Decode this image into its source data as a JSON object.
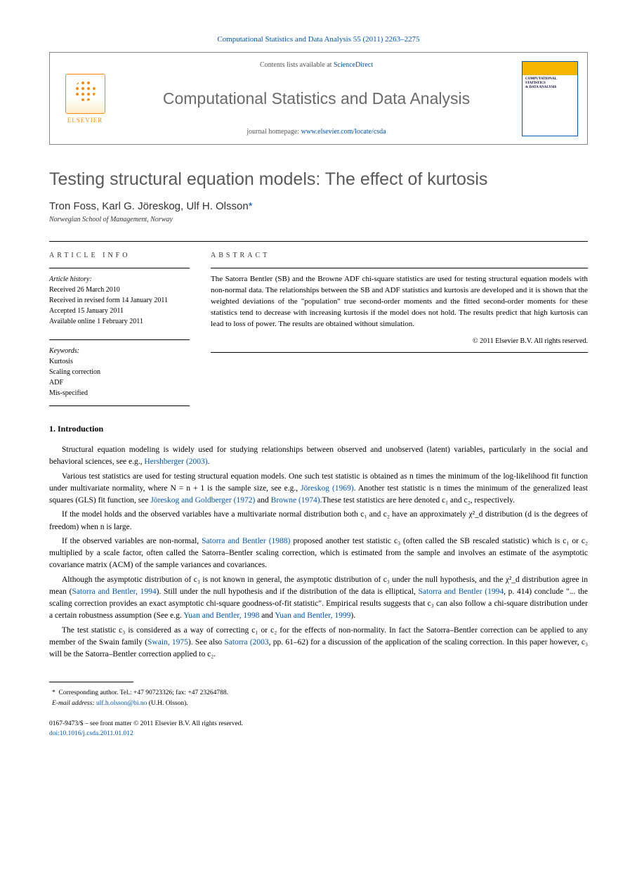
{
  "header": {
    "citation": "Computational Statistics and Data Analysis 55 (2011) 2263–2275",
    "contents_prefix": "Contents lists available at ",
    "contents_link": "ScienceDirect",
    "journal_name": "Computational Statistics and Data Analysis",
    "homepage_prefix": "journal homepage: ",
    "homepage_link": "www.elsevier.com/locate/csda",
    "publisher": "ELSEVIER"
  },
  "article": {
    "title": "Testing structural equation models: The effect of kurtosis",
    "authors_html": "Tron Foss, Karl G. Jöreskog, Ulf H. Olsson",
    "corr_marker": "*",
    "affiliation": "Norwegian School of Management, Norway"
  },
  "info": {
    "label": "ARTICLE INFO",
    "history_label": "Article history:",
    "received": "Received 26 March 2010",
    "revised": "Received in revised form 14 January 2011",
    "accepted": "Accepted 15 January 2011",
    "online": "Available online 1 February 2011",
    "keywords_label": "Keywords:",
    "kw1": "Kurtosis",
    "kw2": "Scaling correction",
    "kw3": "ADF",
    "kw4": "Mis-specified"
  },
  "abstract": {
    "label": "ABSTRACT",
    "text": "The Satorra Bentler (SB) and the Browne ADF chi-square statistics are used for testing structural equation models with non-normal data. The relationships between the SB and ADF statistics and kurtosis are developed and it is shown that the weighted deviations of the \"population\" true second-order moments and the fitted second-order moments for these statistics tend to decrease with increasing kurtosis if the model does not hold. The results predict that high kurtosis can lead to loss of power. The results are obtained without simulation.",
    "copyright": "© 2011 Elsevier B.V. All rights reserved."
  },
  "body": {
    "section1_heading": "1. Introduction",
    "p1_a": "Structural equation modeling is widely used for studying relationships between observed and unobserved (latent) variables, particularly in the social and behavioral sciences, see e.g., ",
    "p1_ref1": "Hershberger (2003)",
    "p1_b": ".",
    "p2_a": "Various test statistics are used for testing structural equation models. One such test statistic is obtained as n times the minimum of the log-likelihood fit function under multivariate normality, where N = n + 1 is the sample size, see e.g., ",
    "p2_ref1": "Jöreskog (1969)",
    "p2_b": ". Another test statistic is n times the minimum of the generalized least squares (GLS) fit function, see ",
    "p2_ref2": "Jöreskog and Goldberger (1972)",
    "p2_c": " and ",
    "p2_ref3": "Browne (1974)",
    "p2_d": ".These test statistics are here denoted c₁ and c₂, respectively.",
    "p3": "If the model holds and the observed variables have a multivariate normal distribution both c₁ and c₂ have an approximately χ²_d distribution (d is the degrees of freedom) when n is large.",
    "p4_a": "If the observed variables are non-normal, ",
    "p4_ref1": "Satorra and Bentler (1988)",
    "p4_b": " proposed another test statistic c₃ (often called the SB rescaled statistic) which is c₁ or c₂ multiplied by a scale factor, often called the Satorra–Bentler scaling correction, which is estimated from the sample and involves an estimate of the asymptotic covariance matrix (ACM) of the sample variances and covariances.",
    "p5_a": "Although the asymptotic distribution of c₃ is not known in general, the asymptotic distribution of c₃ under the null hypothesis, and the χ²_d distribution agree in mean (",
    "p5_ref1": "Satorra and Bentler, 1994",
    "p5_b": "). Still under the null hypothesis and if the distribution of the data is elliptical, ",
    "p5_ref2": "Satorra and Bentler (1994",
    "p5_c": ", p. 414) conclude \"... the scaling correction provides an exact asymptotic chi-square goodness-of-fit statistic\". Empirical results suggests that c₃ can also follow a chi-square distribution under a certain robustness assumption (See e.g. ",
    "p5_ref3": "Yuan and Bentler, 1998",
    "p5_d": " and ",
    "p5_ref4": "Yuan and Bentler, 1999",
    "p5_e": ").",
    "p6_a": "The test statistic c₃ is considered as a way of correcting c₁ or c₂ for the effects of non-normality. In fact the Satorra–Bentler correction can be applied to any member of the Swain family (",
    "p6_ref1": "Swain, 1975",
    "p6_b": "). See also ",
    "p6_ref2": "Satorra (2003",
    "p6_c": ", pp. 61–62) for a discussion of the application of the scaling correction. In this paper however, c₃ will be the Satorra–Bentler correction applied to c₂."
  },
  "footnote": {
    "corr": "Corresponding author. Tel.: +47 90723326; fax: +47 23264788.",
    "email_label": "E-mail address: ",
    "email": "ulf.h.olsson@bi.no",
    "email_suffix": " (U.H. Olsson)."
  },
  "footer": {
    "issn": "0167-9473/$ – see front matter © 2011 Elsevier B.V. All rights reserved.",
    "doi_label": "doi:",
    "doi": "10.1016/j.csda.2011.01.012"
  },
  "colors": {
    "link": "#0056b3",
    "elsevier_orange": "#ff8c00",
    "title_gray": "#5a5a5a"
  }
}
